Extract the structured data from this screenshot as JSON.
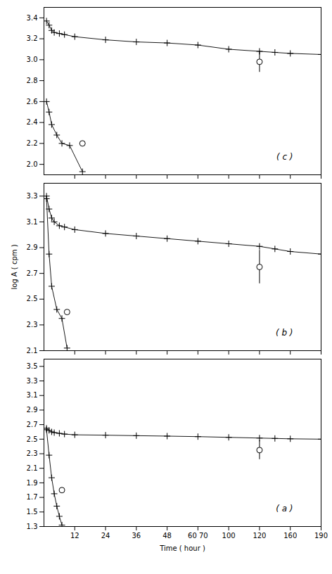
{
  "chart_data": [
    {
      "type": "line",
      "annotation": "( c )",
      "tick_labels": "y",
      "xlim": [
        0,
        190
      ],
      "xticks": [
        12,
        24,
        36,
        48,
        {
          "value": 65,
          "label": "60 70"
        },
        100,
        120,
        160,
        190
      ],
      "ylim": [
        1.9,
        3.5
      ],
      "yticks": [
        {
          "value": 2.0,
          "label": "2.0"
        },
        2.2,
        2.4,
        2.6,
        2.8,
        {
          "value": 3.0,
          "label": "3.0"
        },
        3.2,
        3.4
      ],
      "series": [
        {
          "type": "line",
          "marker": "plus",
          "color": "#000000",
          "x": [
            1,
            2,
            3,
            4,
            6,
            8,
            12,
            24,
            36,
            48,
            65,
            100,
            120,
            140,
            160,
            190
          ],
          "values": [
            3.37,
            3.33,
            3.28,
            3.26,
            3.25,
            3.24,
            3.22,
            3.19,
            3.17,
            3.16,
            3.14,
            3.1,
            3.08,
            3.07,
            3.06,
            3.05
          ]
        },
        {
          "type": "line",
          "marker": "plus",
          "color": "#000000",
          "x": [
            1,
            2,
            3,
            5,
            7,
            10,
            15
          ],
          "values": [
            2.6,
            2.5,
            2.38,
            2.28,
            2.2,
            2.18,
            1.93
          ]
        },
        {
          "type": "scatter",
          "marker": "open_circle",
          "color": "#000000",
          "x": [
            120
          ],
          "values": [
            2.98
          ],
          "errors": [
            0.1
          ]
        },
        {
          "type": "scatter",
          "marker": "open_circle",
          "color": "#000000",
          "x": [
            15
          ],
          "values": [
            2.2
          ]
        }
      ]
    },
    {
      "type": "line",
      "annotation": "( b )",
      "tick_labels": "y",
      "ylabel": "log A ( cpm )",
      "xlim": [
        0,
        190
      ],
      "xticks": [
        12,
        24,
        36,
        48,
        {
          "value": 65,
          "label": "60 70"
        },
        100,
        120,
        160,
        190
      ],
      "ylim": [
        2.1,
        3.4
      ],
      "yticks": [
        2.1,
        2.3,
        2.5,
        2.7,
        2.9,
        3.1,
        3.3
      ],
      "series": [
        {
          "type": "line",
          "marker": "plus",
          "color": "#000000",
          "x": [
            1,
            2,
            3,
            4,
            6,
            8,
            12,
            24,
            36,
            48,
            65,
            100,
            120,
            140,
            160,
            190
          ],
          "values": [
            3.3,
            3.2,
            3.13,
            3.1,
            3.07,
            3.06,
            3.04,
            3.01,
            2.99,
            2.97,
            2.95,
            2.93,
            2.91,
            2.89,
            2.87,
            2.85
          ]
        },
        {
          "type": "line",
          "marker": "plus",
          "color": "#000000",
          "x": [
            1,
            2,
            3,
            5,
            7,
            9
          ],
          "values": [
            3.28,
            2.85,
            2.6,
            2.42,
            2.35,
            2.12
          ]
        },
        {
          "type": "scatter",
          "marker": "open_circle",
          "color": "#000000",
          "x": [
            120
          ],
          "values": [
            2.75
          ],
          "errors": [
            0.13
          ]
        },
        {
          "type": "scatter",
          "marker": "open_circle",
          "color": "#000000",
          "x": [
            9
          ],
          "values": [
            2.4
          ]
        }
      ]
    },
    {
      "type": "line",
      "annotation": "( a )",
      "xlabel": "Time ( hour )",
      "xlim": [
        0,
        190
      ],
      "xticks": [
        12,
        24,
        36,
        48,
        {
          "value": 65,
          "label": "60 70"
        },
        100,
        120,
        160,
        190
      ],
      "ylim": [
        1.3,
        3.6
      ],
      "yticks": [
        1.3,
        1.5,
        1.7,
        1.9,
        2.1,
        2.3,
        2.5,
        2.7,
        2.9,
        3.1,
        3.3,
        3.5
      ],
      "series": [
        {
          "type": "line",
          "marker": "plus",
          "color": "#000000",
          "x": [
            1,
            2,
            3,
            4,
            6,
            8,
            12,
            24,
            36,
            48,
            65,
            100,
            120,
            140,
            160,
            190
          ],
          "values": [
            2.65,
            2.62,
            2.6,
            2.59,
            2.58,
            2.57,
            2.56,
            2.555,
            2.548,
            2.542,
            2.535,
            2.525,
            2.515,
            2.51,
            2.505,
            2.5
          ]
        },
        {
          "type": "line",
          "marker": "plus",
          "color": "#000000",
          "x": [
            1,
            2,
            3,
            4,
            5,
            6,
            7
          ],
          "values": [
            2.63,
            2.28,
            1.97,
            1.75,
            1.58,
            1.44,
            1.32
          ]
        },
        {
          "type": "scatter",
          "marker": "open_circle",
          "color": "#000000",
          "x": [
            120
          ],
          "values": [
            2.35
          ],
          "errors": [
            0.13
          ]
        },
        {
          "type": "scatter",
          "marker": "open_circle",
          "color": "#000000",
          "x": [
            7
          ],
          "values": [
            1.8
          ]
        }
      ]
    }
  ]
}
